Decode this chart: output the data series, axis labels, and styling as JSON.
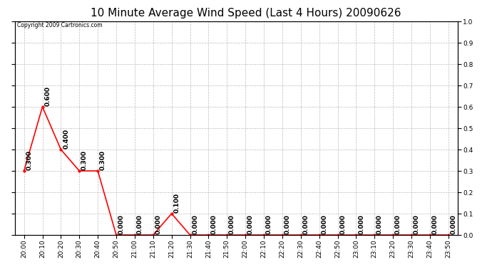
{
  "title": "10 Minute Average Wind Speed (Last 4 Hours) 20090626",
  "copyright": "Copyright 2009 Cartronics.com",
  "x_labels": [
    "20:00",
    "20:10",
    "20:20",
    "20:30",
    "20:40",
    "20:50",
    "21:00",
    "21:10",
    "21:20",
    "21:30",
    "21:40",
    "21:50",
    "22:00",
    "22:10",
    "22:20",
    "22:30",
    "22:40",
    "22:50",
    "23:00",
    "23:10",
    "23:20",
    "23:30",
    "23:40",
    "23:50"
  ],
  "y_values": [
    0.3,
    0.6,
    0.4,
    0.3,
    0.3,
    0.0,
    0.0,
    0.0,
    0.1,
    0.0,
    0.0,
    0.0,
    0.0,
    0.0,
    0.0,
    0.0,
    0.0,
    0.0,
    0.0,
    0.0,
    0.0,
    0.0,
    0.0,
    0.0
  ],
  "line_color": "#ff0000",
  "marker": "o",
  "marker_size": 2.5,
  "marker_facecolor": "#ff0000",
  "ylim": [
    0.0,
    1.0
  ],
  "yticks": [
    0.0,
    0.1,
    0.2,
    0.3,
    0.4,
    0.5,
    0.6,
    0.7,
    0.8,
    0.9,
    1.0
  ],
  "grid_color": "#bbbbbb",
  "grid_linestyle": "--",
  "bg_color": "#ffffff",
  "title_fontsize": 11,
  "label_fontsize": 6.5,
  "annotation_fontsize": 6.5,
  "annotation_rotation": 90,
  "fig_width": 6.9,
  "fig_height": 3.75
}
